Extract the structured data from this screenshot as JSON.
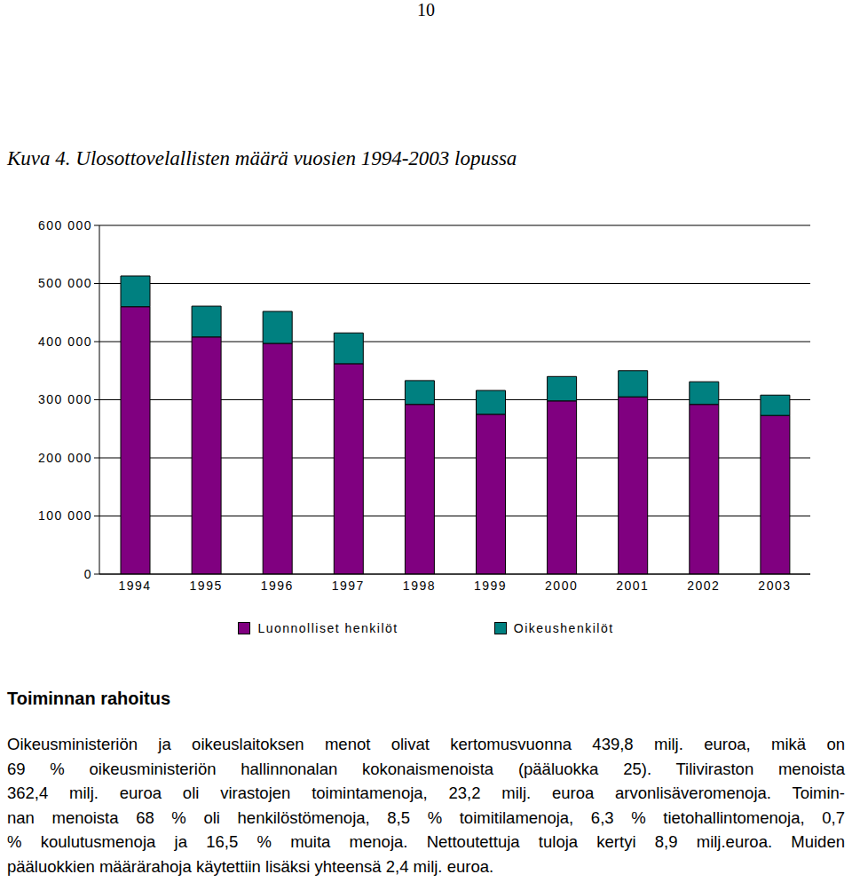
{
  "page_number": "10",
  "caption": "Kuva 4. Ulosottovelallisten määrä vuosien 1994-2003 lopussa",
  "chart_data": {
    "type": "bar",
    "stacked": true,
    "categories": [
      "1994",
      "1995",
      "1996",
      "1997",
      "1998",
      "1999",
      "2000",
      "2001",
      "2002",
      "2003"
    ],
    "series": [
      {
        "name": "Luonnolliset henkilöt",
        "color": "#800080",
        "values": [
          460000,
          408000,
          397000,
          362000,
          292000,
          275000,
          298000,
          305000,
          292000,
          273000
        ]
      },
      {
        "name": "Oikeushenkilöt",
        "color": "#008080",
        "values": [
          53000,
          53000,
          55000,
          53000,
          41000,
          41000,
          42000,
          45000,
          39000,
          35000
        ]
      }
    ],
    "ylim": [
      0,
      600000
    ],
    "yticks": [
      0,
      {
        "value": 100000,
        "label": "100 000"
      },
      {
        "value": 200000,
        "label": "200 000"
      },
      {
        "value": 300000,
        "label": "300 000"
      },
      {
        "value": 400000,
        "label": "400 000"
      },
      {
        "value": 500000,
        "label": "500 000"
      },
      {
        "value": 600000,
        "label": "600 000"
      }
    ],
    "grid": true,
    "legend": "bottom"
  },
  "section": {
    "heading": "Toiminnan rahoitus",
    "lines": [
      "Oikeusministeriön ja oikeuslaitoksen menot olivat kertomusvuonna 439,8 milj. euroa, mikä on",
      "69 % oikeusministeriön hallinnonalan kokonaismenoista (pääluokka 25). Tiliviraston menoista",
      "362,4 milj. euroa oli virastojen toimintamenoja, 23,2 milj. euroa arvonlisäveromenoja. Toimin-",
      "nan menoista 68 % oli henkilöstömenoja, 8,5 % toimitilamenoja, 6,3 % tietohallintomenoja, 0,7",
      "% koulutusmenoja ja 16,5 % muita menoja. Nettoutettuja tuloja kertyi 8,9 milj.euroa. Muiden",
      "pääluokkien määrärahoja käytettiin lisäksi yhteensä 2,4 milj. euroa."
    ]
  }
}
